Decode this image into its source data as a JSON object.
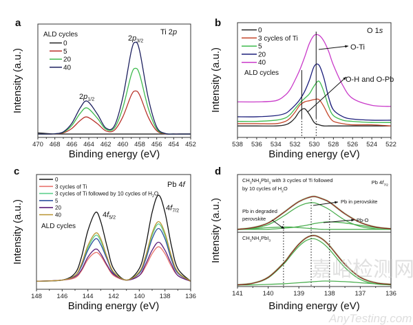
{
  "chart_data": [
    {
      "panel": "a",
      "type": "line",
      "xlabel": "Binding energy (eV)",
      "ylabel": "Intensity (a.u.)",
      "xlim": [
        470,
        452
      ],
      "ylim": [
        0,
        1
      ],
      "xticks": [
        "470",
        "468",
        "466",
        "464",
        "462",
        "460",
        "458",
        "456",
        "454",
        "452"
      ],
      "grid": false,
      "legend_title": "ALD cycles",
      "legend_position": "top-left",
      "annotations": [
        [
          {
            "t": "2"
          },
          {
            "t": "p",
            "i": true
          },
          {
            "t": "1/2",
            "sub": true
          }
        ],
        [
          {
            "t": "2"
          },
          {
            "t": "p",
            "i": true
          },
          {
            "t": "3/2",
            "sub": true
          }
        ],
        [
          {
            "t": "Ti 2"
          },
          {
            "t": "p",
            "i": true
          }
        ]
      ],
      "x": [
        470,
        469,
        468,
        467,
        466,
        465,
        464.2,
        463,
        462,
        461,
        460,
        459,
        458.5,
        458,
        457,
        456,
        455,
        454,
        453,
        452
      ],
      "series": [
        {
          "name": "0",
          "color": "#222222",
          "values": [
            0.04,
            0.035,
            0.03,
            0.03,
            0.03,
            0.03,
            0.03,
            0.03,
            0.03,
            0.03,
            0.03,
            0.03,
            0.03,
            0.03,
            0.03,
            0.03,
            0.03,
            0.03,
            0.03,
            0.03
          ]
        },
        {
          "name": "5",
          "color": "#b8322a",
          "values": [
            0.03,
            0.03,
            0.031,
            0.04,
            0.079,
            0.15,
            0.18,
            0.122,
            0.058,
            0.063,
            0.18,
            0.372,
            0.41,
            0.372,
            0.18,
            0.059,
            0.032,
            0.03,
            0.03,
            0.03
          ]
        },
        {
          "name": "20",
          "color": "#3dba4c",
          "values": [
            0.03,
            0.03,
            0.032,
            0.045,
            0.105,
            0.214,
            0.26,
            0.17,
            0.073,
            0.081,
            0.259,
            0.552,
            0.61,
            0.552,
            0.259,
            0.074,
            0.034,
            0.03,
            0.03,
            0.03
          ]
        },
        {
          "name": "40",
          "color": "#1c1f5e",
          "values": [
            0.03,
            0.03,
            0.032,
            0.049,
            0.124,
            0.262,
            0.32,
            0.207,
            0.084,
            0.1,
            0.35,
            0.76,
            0.84,
            0.76,
            0.35,
            0.092,
            0.035,
            0.03,
            0.03,
            0.03
          ]
        }
      ]
    },
    {
      "panel": "b",
      "type": "line",
      "xlabel": "Binding energy (eV)",
      "ylabel": "Intensity (a.u.)",
      "xlim": [
        538,
        522
      ],
      "ylim": [
        0,
        1
      ],
      "xticks": [
        "538",
        "536",
        "534",
        "532",
        "530",
        "528",
        "526",
        "524",
        "522"
      ],
      "grid": false,
      "legend_title": "ALD cycles",
      "legend_position": "top-left",
      "reference_lines": [
        531.3,
        529.8
      ],
      "annotations": [
        [
          {
            "t": "O 1"
          },
          {
            "t": "s",
            "i": true
          }
        ],
        [
          {
            "t": "O-Ti"
          }
        ],
        [
          {
            "t": "O-H and O-Pb"
          }
        ]
      ],
      "x": [
        538,
        536,
        534,
        533,
        532.5,
        532,
        531.5,
        531,
        530.5,
        530,
        529.5,
        529,
        528.5,
        528,
        527,
        526,
        524,
        522
      ],
      "series": [
        {
          "name": "0",
          "color": "#222222",
          "values": [
            0.1,
            0.1,
            0.1,
            0.11,
            0.13,
            0.17,
            0.23,
            0.25,
            0.2,
            0.13,
            0.11,
            0.1,
            0.1,
            0.1,
            0.1,
            0.1,
            0.1,
            0.1
          ]
        },
        {
          "name": "3 cycles of Ti",
          "color": "#c4472b",
          "values": [
            0.12,
            0.12,
            0.12,
            0.14,
            0.17,
            0.22,
            0.28,
            0.31,
            0.32,
            0.33,
            0.33,
            0.27,
            0.19,
            0.14,
            0.12,
            0.11,
            0.11,
            0.1
          ]
        },
        {
          "name": "5",
          "color": "#3dba4c",
          "values": [
            0.14,
            0.14,
            0.15,
            0.17,
            0.2,
            0.25,
            0.3,
            0.34,
            0.38,
            0.45,
            0.49,
            0.4,
            0.27,
            0.19,
            0.15,
            0.14,
            0.13,
            0.13
          ]
        },
        {
          "name": "20",
          "color": "#1a1d7a",
          "values": [
            0.18,
            0.18,
            0.19,
            0.21,
            0.24,
            0.28,
            0.33,
            0.4,
            0.5,
            0.62,
            0.63,
            0.52,
            0.35,
            0.24,
            0.18,
            0.16,
            0.15,
            0.15
          ]
        },
        {
          "name": "40",
          "color": "#c93ac9",
          "values": [
            0.31,
            0.31,
            0.32,
            0.37,
            0.42,
            0.5,
            0.59,
            0.7,
            0.82,
            0.89,
            0.89,
            0.84,
            0.75,
            0.63,
            0.45,
            0.34,
            0.28,
            0.27
          ]
        }
      ]
    },
    {
      "panel": "c",
      "type": "line",
      "xlabel": "Binding energy (eV)",
      "ylabel": "Intensity (a.u.)",
      "xlim": [
        148,
        136
      ],
      "ylim": [
        0,
        1
      ],
      "xticks": [
        "148",
        "146",
        "144",
        "142",
        "140",
        "138",
        "136"
      ],
      "grid": false,
      "legend_title": "ALD cycles",
      "legend_position": "top-left",
      "annotations": [
        [
          {
            "t": "Pb 4"
          },
          {
            "t": "f",
            "i": true
          }
        ],
        [
          {
            "t": "4"
          },
          {
            "t": "f",
            "i": true
          },
          {
            "t": "5/2",
            "sub": true
          }
        ],
        [
          {
            "t": "4"
          },
          {
            "t": "f",
            "i": true
          },
          {
            "t": "7/2",
            "sub": true
          }
        ]
      ],
      "x": [
        148,
        146,
        145,
        144.5,
        144,
        143.4,
        143,
        142.5,
        142,
        141,
        140,
        139.5,
        139,
        138.5,
        138,
        137.5,
        137,
        136
      ],
      "series": [
        {
          "name": [
            {
              "t": "0"
            }
          ],
          "color": "#111111",
          "values": [
            0.07,
            0.08,
            0.14,
            0.28,
            0.51,
            0.67,
            0.59,
            0.37,
            0.18,
            0.08,
            0.18,
            0.38,
            0.67,
            0.82,
            0.67,
            0.38,
            0.18,
            0.07
          ]
        },
        {
          "name": [
            {
              "t": "3 cycles of Ti"
            }
          ],
          "color": "#e8736c",
          "values": [
            0.07,
            0.08,
            0.1,
            0.16,
            0.26,
            0.32,
            0.29,
            0.2,
            0.12,
            0.08,
            0.12,
            0.2,
            0.31,
            0.37,
            0.31,
            0.2,
            0.12,
            0.07
          ]
        },
        {
          "name": [
            {
              "t": "3 cycles of Ti  followed by 10 cycles of H"
            },
            {
              "t": "2",
              "sub": true
            },
            {
              "t": "O"
            }
          ],
          "color": "#5ccf8c",
          "values": [
            0.07,
            0.08,
            0.12,
            0.21,
            0.36,
            0.47,
            0.42,
            0.27,
            0.15,
            0.08,
            0.15,
            0.28,
            0.47,
            0.57,
            0.47,
            0.28,
            0.15,
            0.07
          ]
        },
        {
          "name": [
            {
              "t": "5"
            }
          ],
          "color": "#2b4f9e",
          "values": [
            0.07,
            0.08,
            0.12,
            0.2,
            0.34,
            0.44,
            0.39,
            0.26,
            0.14,
            0.08,
            0.14,
            0.26,
            0.44,
            0.53,
            0.44,
            0.26,
            0.14,
            0.07
          ]
        },
        {
          "name": [
            {
              "t": "20"
            }
          ],
          "color": "#5b1c78",
          "values": [
            0.07,
            0.08,
            0.11,
            0.17,
            0.28,
            0.35,
            0.31,
            0.21,
            0.13,
            0.08,
            0.12,
            0.22,
            0.34,
            0.41,
            0.34,
            0.22,
            0.12,
            0.07
          ]
        },
        {
          "name": [
            {
              "t": "40"
            }
          ],
          "color": "#b8932e",
          "values": [
            0.07,
            0.08,
            0.12,
            0.22,
            0.38,
            0.49,
            0.44,
            0.28,
            0.15,
            0.08,
            0.15,
            0.29,
            0.49,
            0.59,
            0.49,
            0.29,
            0.15,
            0.07
          ]
        }
      ]
    },
    {
      "panel": "d",
      "type": "line",
      "xlabel": "Binding energy (eV)",
      "ylabel": "Intensity (a.u.)",
      "xlim": [
        141,
        136
      ],
      "xticks": [
        "141",
        "140",
        "139",
        "138",
        "137",
        "136"
      ],
      "grid": false,
      "reference_lines": [
        139.5,
        138.6,
        138.0
      ],
      "annotations": [
        [
          {
            "t": "Pb 4"
          },
          {
            "t": "f",
            "i": true
          },
          {
            "t": "7/2",
            "sub": true
          }
        ],
        [
          {
            "t": "Pb in perovskite"
          }
        ],
        [
          {
            "t": "Pb in degraded"
          }
        ],
        [
          {
            "t": "perovskite"
          }
        ],
        [
          {
            "t": "Pb-O"
          }
        ]
      ],
      "x": [
        141,
        140.5,
        140,
        139.5,
        139.25,
        139,
        138.75,
        138.5,
        138.25,
        138,
        137.5,
        137,
        136.5,
        136
      ],
      "subpanels": [
        {
          "label_lines": [
            [
              {
                "t": "CH"
              },
              {
                "t": "3",
                "sub": true
              },
              {
                "t": "NH"
              },
              {
                "t": "3",
                "sub": true
              },
              {
                "t": "PbI"
              },
              {
                "t": "3",
                "sub": true
              },
              {
                "t": " with 3 cycles of Ti  followed"
              }
            ],
            [
              {
                "t": "by 10 cycles of H"
              },
              {
                "t": "2",
                "sub": true
              },
              {
                "t": "O"
              }
            ]
          ],
          "ylim": [
            0,
            1
          ],
          "series": [
            {
              "color": "#9be59b",
              "values": [
                0.05,
                0.08,
                0.16,
                0.34,
                0.44,
                0.53,
                0.59,
                0.62,
                0.58,
                0.52,
                0.32,
                0.17,
                0.09,
                0.06
              ]
            },
            {
              "color": "#4caf50",
              "values": [
                0.05,
                0.07,
                0.13,
                0.28,
                0.37,
                0.45,
                0.5,
                0.51,
                0.46,
                0.39,
                0.21,
                0.1,
                0.06,
                0.05
              ]
            },
            {
              "color": "#4caf50",
              "values": [
                0.05,
                0.05,
                0.05,
                0.07,
                0.08,
                0.1,
                0.12,
                0.15,
                0.17,
                0.18,
                0.16,
                0.12,
                0.08,
                0.06
              ]
            },
            {
              "color": "#4caf50",
              "values": [
                0.05,
                0.06,
                0.08,
                0.09,
                0.09,
                0.08,
                0.07,
                0.06,
                0.05,
                0.05,
                0.05,
                0.05,
                0.05,
                0.05
              ]
            },
            {
              "color": "#8e1c1c",
              "values": [
                0.05,
                0.08,
                0.16,
                0.34,
                0.44,
                0.53,
                0.59,
                0.62,
                0.58,
                0.52,
                0.32,
                0.17,
                0.09,
                0.06
              ]
            }
          ]
        },
        {
          "label_lines": [
            [
              {
                "t": "CH"
              },
              {
                "t": "3",
                "sub": true
              },
              {
                "t": "NH"
              },
              {
                "t": "3",
                "sub": true
              },
              {
                "t": "PbI"
              },
              {
                "t": "3",
                "sub": true
              }
            ]
          ],
          "ylim": [
            0,
            1
          ],
          "series": [
            {
              "color": "#9be59b",
              "values": [
                0.03,
                0.06,
                0.17,
                0.43,
                0.61,
                0.78,
                0.9,
                0.94,
                0.88,
                0.75,
                0.41,
                0.17,
                0.07,
                0.04
              ]
            },
            {
              "color": "#4caf50",
              "values": [
                0.03,
                0.06,
                0.16,
                0.41,
                0.58,
                0.74,
                0.85,
                0.88,
                0.81,
                0.68,
                0.35,
                0.13,
                0.05,
                0.03
              ]
            },
            {
              "color": "#4caf50",
              "values": [
                0.03,
                0.03,
                0.04,
                0.05,
                0.06,
                0.07,
                0.08,
                0.09,
                0.1,
                0.1,
                0.09,
                0.07,
                0.05,
                0.04
              ]
            },
            {
              "color": "#8e1c1c",
              "values": [
                0.03,
                0.06,
                0.17,
                0.43,
                0.61,
                0.78,
                0.9,
                0.94,
                0.88,
                0.75,
                0.41,
                0.17,
                0.07,
                0.04
              ]
            }
          ]
        }
      ]
    }
  ],
  "watermark": {
    "cn": "嘉峪检测网",
    "en": "AnyTesting.com"
  }
}
